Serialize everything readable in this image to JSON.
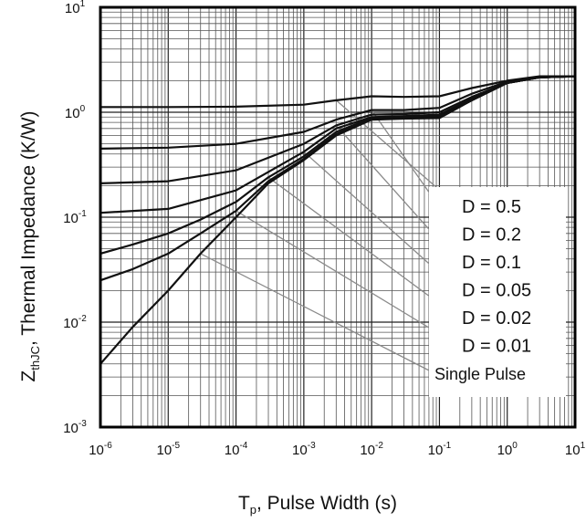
{
  "chart_data": {
    "type": "line",
    "x_scale": "log",
    "y_scale": "log",
    "xlim": [
      1e-06,
      10
    ],
    "ylim": [
      0.001,
      10
    ],
    "grid": true,
    "x_ticks": [
      {
        "base": "10",
        "exp": "-6"
      },
      {
        "base": "10",
        "exp": "-5"
      },
      {
        "base": "10",
        "exp": "-4"
      },
      {
        "base": "10",
        "exp": "-3"
      },
      {
        "base": "10",
        "exp": "-2"
      },
      {
        "base": "10",
        "exp": "-1"
      },
      {
        "base": "10",
        "exp": "0"
      },
      {
        "base": "10",
        "exp": "1"
      }
    ],
    "y_ticks": [
      {
        "base": "10",
        "exp": "1"
      },
      {
        "base": "10",
        "exp": "0"
      },
      {
        "base": "10",
        "exp": "-1"
      },
      {
        "base": "10",
        "exp": "-2"
      },
      {
        "base": "10",
        "exp": "-3"
      }
    ],
    "xlabel": {
      "main": "T",
      "sub": "p",
      "rest": ", Pulse Width (s)"
    },
    "ylabel": {
      "main": "Z",
      "sub": "thJC",
      "rest": ", Thermal Impedance (K/W)"
    },
    "series": [
      {
        "name": "D = 0.5",
        "x": [
          1e-06,
          1e-05,
          0.0001,
          0.001,
          0.003,
          0.01,
          0.03,
          0.1,
          0.3,
          1,
          3,
          10
        ],
        "y": [
          1.12,
          1.12,
          1.13,
          1.18,
          1.3,
          1.42,
          1.4,
          1.42,
          1.7,
          2.0,
          2.2,
          2.2
        ]
      },
      {
        "name": "D = 0.2",
        "x": [
          1e-06,
          1e-05,
          0.0001,
          0.001,
          0.003,
          0.01,
          0.03,
          0.1,
          0.3,
          1,
          3,
          10
        ],
        "y": [
          0.45,
          0.46,
          0.5,
          0.65,
          0.85,
          1.05,
          1.05,
          1.1,
          1.5,
          1.95,
          2.15,
          2.2
        ]
      },
      {
        "name": "D = 0.1",
        "x": [
          1e-06,
          1e-05,
          0.0001,
          0.001,
          0.003,
          0.01,
          0.03,
          0.1,
          0.3,
          1,
          3,
          10
        ],
        "y": [
          0.21,
          0.22,
          0.28,
          0.5,
          0.75,
          0.95,
          0.96,
          1.0,
          1.4,
          1.9,
          2.15,
          2.2
        ]
      },
      {
        "name": "D = 0.05",
        "x": [
          1e-06,
          1e-05,
          0.0001,
          0.001,
          0.003,
          0.01,
          0.03,
          0.1,
          0.3,
          1,
          3,
          10
        ],
        "y": [
          0.11,
          0.12,
          0.18,
          0.42,
          0.7,
          0.9,
          0.92,
          0.95,
          1.35,
          1.9,
          2.15,
          2.2
        ]
      },
      {
        "name": "D = 0.02",
        "x": [
          1e-06,
          3e-06,
          1e-05,
          3e-05,
          0.0001,
          0.0003,
          0.001,
          0.003,
          0.01,
          0.03,
          0.1,
          0.3,
          1,
          3,
          10
        ],
        "y": [
          0.045,
          0.055,
          0.07,
          0.095,
          0.14,
          0.24,
          0.38,
          0.65,
          0.88,
          0.9,
          0.92,
          1.3,
          1.9,
          2.15,
          2.2
        ]
      },
      {
        "name": "D = 0.01",
        "x": [
          1e-06,
          3e-06,
          1e-05,
          3e-05,
          0.0001,
          0.0003,
          0.001,
          0.003,
          0.01,
          0.03,
          0.1,
          0.3,
          1,
          3,
          10
        ],
        "y": [
          0.025,
          0.032,
          0.045,
          0.07,
          0.115,
          0.22,
          0.36,
          0.62,
          0.87,
          0.88,
          0.9,
          1.3,
          1.9,
          2.15,
          2.2
        ]
      },
      {
        "name": "Single Pulse",
        "x": [
          1e-06,
          3e-06,
          1e-05,
          3e-05,
          0.0001,
          0.0003,
          0.001,
          0.003,
          0.01,
          0.03,
          0.1,
          0.3,
          1,
          3,
          10
        ],
        "y": [
          0.004,
          0.009,
          0.02,
          0.045,
          0.1,
          0.21,
          0.35,
          0.6,
          0.85,
          0.87,
          0.88,
          1.3,
          1.9,
          2.15,
          2.2
        ]
      }
    ],
    "legend": {
      "placement": "right, inside plot",
      "style": "labels with leader lines"
    }
  }
}
